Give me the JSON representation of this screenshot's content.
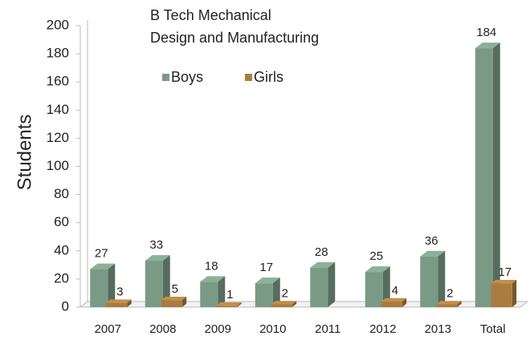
{
  "chart_data": {
    "type": "bar3d",
    "title": [
      "B Tech Mechanical",
      "Design and Manufacturing"
    ],
    "y_label": "Students",
    "categories": [
      "2007",
      "2008",
      "2009",
      "2010",
      "2011",
      "2012",
      "2013",
      "Total"
    ],
    "series": [
      {
        "name": "Boys",
        "color": "#7a9a86",
        "values": [
          27,
          33,
          18,
          17,
          28,
          25,
          36,
          184
        ]
      },
      {
        "name": "Girls",
        "color": "#a97d3f",
        "values": [
          3,
          5,
          1,
          2,
          null,
          4,
          2,
          17
        ]
      }
    ],
    "ylim": [
      0,
      200
    ],
    "yticks": [
      0,
      20,
      40,
      60,
      80,
      100,
      120,
      140,
      160,
      180,
      200
    ]
  }
}
